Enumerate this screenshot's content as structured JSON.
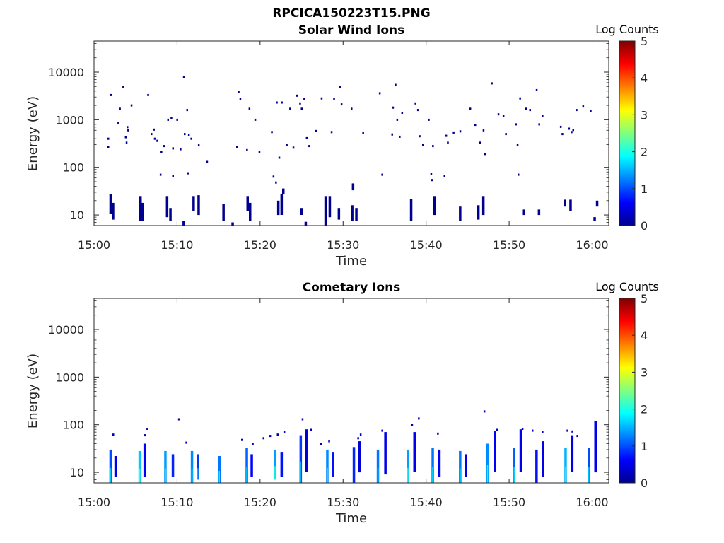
{
  "figure_title": "RPCICA150223T15.PNG",
  "colormap": [
    "#00008f",
    "#0000ff",
    "#0080ff",
    "#00ffff",
    "#80ff80",
    "#ffff00",
    "#ff8000",
    "#ff0000",
    "#800000"
  ],
  "chart_data": [
    {
      "type": "heatmap",
      "title": "Solar Wind Ions",
      "xlabel": "Time",
      "ylabel": "Energy (eV)",
      "x_tick_labels": [
        "15:00",
        "15:10",
        "15:20",
        "15:30",
        "15:40",
        "15:50",
        "16:00"
      ],
      "x_tick_minutes": [
        0,
        10,
        20,
        30,
        40,
        50,
        60
      ],
      "xlim_minutes": [
        0,
        62
      ],
      "y_scale": "log",
      "y_tick_labels": [
        "10",
        "100",
        "1000",
        "10000"
      ],
      "y_tick_values": [
        10,
        100,
        1000,
        10000
      ],
      "ylim": [
        6,
        45000
      ],
      "colorbar": {
        "label": "Log Counts",
        "range": [
          0,
          5
        ],
        "tick_labels": [
          "0",
          "1",
          "2",
          "3",
          "4",
          "5"
        ]
      },
      "points": [
        [
          1.7,
          400,
          0
        ],
        [
          1.7,
          270,
          0
        ],
        [
          2.0,
          3300,
          0
        ],
        [
          2.9,
          850,
          0
        ],
        [
          3.1,
          1700,
          0
        ],
        [
          3.5,
          4900,
          0
        ],
        [
          3.8,
          430,
          0
        ],
        [
          3.9,
          330,
          0
        ],
        [
          4.0,
          700,
          0
        ],
        [
          4.1,
          600,
          0
        ],
        [
          4.5,
          2000,
          0
        ],
        [
          6.5,
          3300,
          0
        ],
        [
          6.9,
          500,
          0
        ],
        [
          7.2,
          620,
          0
        ],
        [
          7.3,
          400,
          0
        ],
        [
          7.6,
          360,
          0
        ],
        [
          8.1,
          210,
          0
        ],
        [
          8.4,
          280,
          0
        ],
        [
          8.9,
          1000,
          0
        ],
        [
          9.3,
          1100,
          0
        ],
        [
          9.5,
          250,
          0
        ],
        [
          10.0,
          1000,
          0
        ],
        [
          10.4,
          240,
          0
        ],
        [
          10.8,
          7800,
          0
        ],
        [
          10.9,
          500,
          0
        ],
        [
          11.2,
          1600,
          0
        ],
        [
          11.4,
          480,
          0
        ],
        [
          11.7,
          400,
          0
        ],
        [
          12.6,
          290,
          0
        ],
        [
          13.6,
          130,
          0
        ],
        [
          17.2,
          270,
          0
        ],
        [
          17.4,
          3900,
          0
        ],
        [
          17.6,
          2700,
          0
        ],
        [
          18.4,
          230,
          0
        ],
        [
          18.7,
          1700,
          0
        ],
        [
          19.4,
          1000,
          0
        ],
        [
          19.9,
          210,
          0
        ],
        [
          21.4,
          550,
          0
        ],
        [
          22.0,
          2300,
          0
        ],
        [
          22.3,
          160,
          0
        ],
        [
          22.6,
          2300,
          0
        ],
        [
          23.2,
          300,
          0
        ],
        [
          23.6,
          1700,
          0
        ],
        [
          24.0,
          260,
          0
        ],
        [
          24.4,
          3200,
          0
        ],
        [
          24.8,
          2200,
          0
        ],
        [
          25.0,
          1700,
          0
        ],
        [
          25.3,
          2700,
          0
        ],
        [
          25.6,
          410,
          0
        ],
        [
          25.9,
          280,
          0
        ],
        [
          26.7,
          580,
          0
        ],
        [
          27.4,
          2800,
          0
        ],
        [
          28.6,
          550,
          0
        ],
        [
          28.9,
          2700,
          0
        ],
        [
          29.6,
          4900,
          0
        ],
        [
          29.8,
          2100,
          0
        ],
        [
          31.0,
          1700,
          0
        ],
        [
          32.4,
          530,
          0
        ],
        [
          34.4,
          3600,
          0
        ],
        [
          35.9,
          490,
          0
        ],
        [
          36.0,
          1800,
          0
        ],
        [
          36.3,
          5400,
          0
        ],
        [
          36.5,
          1000,
          0
        ],
        [
          36.8,
          440,
          0
        ],
        [
          37.1,
          1400,
          0
        ],
        [
          38.7,
          2200,
          0
        ],
        [
          39.0,
          1600,
          0
        ],
        [
          39.2,
          450,
          0
        ],
        [
          39.6,
          300,
          0
        ],
        [
          40.3,
          1000,
          0
        ],
        [
          40.8,
          280,
          0
        ],
        [
          42.4,
          460,
          0
        ],
        [
          42.6,
          330,
          0
        ],
        [
          43.3,
          540,
          0
        ],
        [
          44.1,
          570,
          0
        ],
        [
          45.3,
          1700,
          0
        ],
        [
          45.9,
          780,
          0
        ],
        [
          46.5,
          330,
          0
        ],
        [
          46.9,
          600,
          0
        ],
        [
          47.1,
          190,
          0
        ],
        [
          47.9,
          5800,
          0
        ],
        [
          48.7,
          1300,
          0
        ],
        [
          49.3,
          1200,
          0
        ],
        [
          49.6,
          500,
          0
        ],
        [
          50.8,
          800,
          0
        ],
        [
          51.0,
          300,
          0
        ],
        [
          51.3,
          2800,
          0
        ],
        [
          52.0,
          1700,
          0
        ],
        [
          52.5,
          1600,
          0
        ],
        [
          53.3,
          4200,
          0
        ],
        [
          53.6,
          800,
          0
        ],
        [
          54.0,
          1200,
          0
        ],
        [
          56.2,
          710,
          0
        ],
        [
          56.4,
          500,
          0
        ],
        [
          57.2,
          650,
          0
        ],
        [
          57.5,
          550,
          0
        ],
        [
          57.7,
          610,
          0
        ],
        [
          58.1,
          1600,
          0
        ],
        [
          58.9,
          1900,
          0
        ],
        [
          59.8,
          1500,
          0
        ],
        [
          9.5,
          65,
          0
        ],
        [
          11.3,
          75,
          0
        ],
        [
          21.6,
          64,
          0
        ],
        [
          21.9,
          48,
          0
        ],
        [
          34.7,
          70,
          0
        ],
        [
          40.6,
          73,
          0
        ],
        [
          40.7,
          54,
          0
        ],
        [
          42.2,
          65,
          0
        ],
        [
          51.1,
          70,
          0
        ],
        [
          8.0,
          70,
          0
        ]
      ],
      "bursts": [
        {
          "t": 2.0,
          "e": [
            10.5,
            27
          ],
          "v": 0
        },
        {
          "t": 2.3,
          "e": [
            8,
            18
          ],
          "v": 0
        },
        {
          "t": 5.6,
          "e": [
            7.5,
            25
          ],
          "v": 0
        },
        {
          "t": 5.9,
          "e": [
            7.5,
            18
          ],
          "v": 0
        },
        {
          "t": 8.8,
          "e": [
            9,
            25
          ],
          "v": 0
        },
        {
          "t": 9.2,
          "e": [
            7.5,
            14
          ],
          "v": 0
        },
        {
          "t": 12.0,
          "e": [
            12,
            25
          ],
          "v": 0
        },
        {
          "t": 12.6,
          "e": [
            10,
            26
          ],
          "v": 0
        },
        {
          "t": 15.6,
          "e": [
            7.5,
            17
          ],
          "v": 0
        },
        {
          "t": 18.5,
          "e": [
            12,
            25
          ],
          "v": 0
        },
        {
          "t": 18.8,
          "e": [
            7.5,
            18
          ],
          "v": 0
        },
        {
          "t": 22.2,
          "e": [
            10,
            20
          ],
          "v": 0
        },
        {
          "t": 22.6,
          "e": [
            10,
            28
          ],
          "v": 0
        },
        {
          "t": 25.0,
          "e": [
            10,
            14
          ],
          "v": 0
        },
        {
          "t": 27.9,
          "e": [
            7.5,
            25
          ],
          "v": 0
        },
        {
          "t": 28.4,
          "e": [
            9,
            25
          ],
          "v": 0
        },
        {
          "t": 29.5,
          "e": [
            8,
            14
          ],
          "v": 0
        },
        {
          "t": 31.1,
          "e": [
            7.5,
            16
          ],
          "v": 0
        },
        {
          "t": 31.6,
          "e": [
            7.5,
            14
          ],
          "v": 0
        },
        {
          "t": 38.2,
          "e": [
            7.5,
            22
          ],
          "v": 0
        },
        {
          "t": 41.0,
          "e": [
            10,
            25
          ],
          "v": 0
        },
        {
          "t": 44.1,
          "e": [
            7.5,
            15
          ],
          "v": 0
        },
        {
          "t": 46.3,
          "e": [
            8,
            16
          ],
          "v": 0
        },
        {
          "t": 46.9,
          "e": [
            10,
            25
          ],
          "v": 0
        },
        {
          "t": 51.8,
          "e": [
            10,
            13
          ],
          "v": 0
        },
        {
          "t": 53.6,
          "e": [
            10,
            13
          ],
          "v": 0
        },
        {
          "t": 56.7,
          "e": [
            15,
            21
          ],
          "v": 0
        },
        {
          "t": 57.4,
          "e": [
            12,
            21
          ],
          "v": 0
        },
        {
          "t": 60.3,
          "e": [
            7.5,
            9
          ],
          "v": 0
        },
        {
          "t": 60.6,
          "e": [
            15,
            20
          ],
          "v": 0
        },
        {
          "t": 10.8,
          "e": [
            6,
            7.4
          ],
          "v": 0
        },
        {
          "t": 16.7,
          "e": [
            6,
            7
          ],
          "v": 0
        },
        {
          "t": 25.5,
          "e": [
            6,
            7.2
          ],
          "v": 0
        },
        {
          "t": 27.9,
          "e": [
            6,
            7.5
          ],
          "v": 0
        },
        {
          "t": 31.2,
          "e": [
            33,
            46
          ],
          "v": 0
        },
        {
          "t": 22.8,
          "e": [
            28,
            36
          ],
          "v": 0
        }
      ]
    },
    {
      "type": "heatmap",
      "title": "Cometary Ions",
      "xlabel": "Time",
      "ylabel": "Energy (eV)",
      "x_tick_labels": [
        "15:00",
        "15:10",
        "15:20",
        "15:30",
        "15:40",
        "15:50",
        "16:00"
      ],
      "x_tick_minutes": [
        0,
        10,
        20,
        30,
        40,
        50,
        60
      ],
      "xlim_minutes": [
        0,
        62
      ],
      "y_scale": "log",
      "y_tick_labels": [
        "10",
        "100",
        "1000",
        "10000"
      ],
      "y_tick_values": [
        10,
        100,
        1000,
        10000
      ],
      "ylim": [
        6,
        45000
      ],
      "colorbar": {
        "label": "Log Counts",
        "range": [
          0,
          5
        ],
        "tick_labels": [
          "0",
          "1",
          "2",
          "3",
          "4",
          "5"
        ]
      },
      "points": [
        [
          2.3,
          62,
          0.2
        ],
        [
          6.4,
          82,
          0.3
        ],
        [
          6.1,
          60,
          0.2
        ],
        [
          10.2,
          130,
          0.2
        ],
        [
          11.1,
          42,
          0.3
        ],
        [
          17.8,
          48,
          0.3
        ],
        [
          19.1,
          40,
          0.2
        ],
        [
          20.4,
          52,
          0.2
        ],
        [
          21.2,
          58,
          0.2
        ],
        [
          22.1,
          62,
          0.2
        ],
        [
          22.9,
          70,
          0.3
        ],
        [
          25.1,
          130,
          0.3
        ],
        [
          26.1,
          78,
          0.3
        ],
        [
          27.3,
          40,
          0.2
        ],
        [
          28.3,
          45,
          0.3
        ],
        [
          31.8,
          52,
          0.2
        ],
        [
          32.1,
          62,
          0.3
        ],
        [
          34.7,
          75,
          0.3
        ],
        [
          38.3,
          98,
          0.2
        ],
        [
          39.1,
          135,
          0.2
        ],
        [
          41.4,
          65,
          0.3
        ],
        [
          47.0,
          190,
          0.3
        ],
        [
          48.5,
          78,
          0.3
        ],
        [
          51.6,
          82,
          0.3
        ],
        [
          52.8,
          75,
          0.3
        ],
        [
          54.0,
          70,
          0.3
        ],
        [
          57.0,
          75,
          0.3
        ],
        [
          57.6,
          72,
          0.3
        ],
        [
          58.2,
          58,
          0.2
        ]
      ],
      "bursts": [
        {
          "t": 2.0,
          "e": [
            6,
            30
          ],
          "v": 1.0
        },
        {
          "t": 2.6,
          "e": [
            8,
            22
          ],
          "v": 0.5
        },
        {
          "t": 5.5,
          "e": [
            6,
            28
          ],
          "v": 1.6
        },
        {
          "t": 6.1,
          "e": [
            8,
            40
          ],
          "v": 0.6
        },
        {
          "t": 8.6,
          "e": [
            6,
            28
          ],
          "v": 1.4
        },
        {
          "t": 9.5,
          "e": [
            8,
            24
          ],
          "v": 0.8
        },
        {
          "t": 11.8,
          "e": [
            6,
            28
          ],
          "v": 1.3
        },
        {
          "t": 12.5,
          "e": [
            7,
            24
          ],
          "v": 0.9
        },
        {
          "t": 15.1,
          "e": [
            6,
            22
          ],
          "v": 1.2
        },
        {
          "t": 18.4,
          "e": [
            6,
            32
          ],
          "v": 1.1
        },
        {
          "t": 19.0,
          "e": [
            8,
            24
          ],
          "v": 0.6
        },
        {
          "t": 21.8,
          "e": [
            7,
            30
          ],
          "v": 1.4
        },
        {
          "t": 22.6,
          "e": [
            8,
            26
          ],
          "v": 0.7
        },
        {
          "t": 24.9,
          "e": [
            6,
            60
          ],
          "v": 0.9
        },
        {
          "t": 25.6,
          "e": [
            10,
            80
          ],
          "v": 0.4
        },
        {
          "t": 28.1,
          "e": [
            6,
            30
          ],
          "v": 1.3
        },
        {
          "t": 28.8,
          "e": [
            8,
            26
          ],
          "v": 0.7
        },
        {
          "t": 31.3,
          "e": [
            6,
            34
          ],
          "v": 0.8
        },
        {
          "t": 32.0,
          "e": [
            10,
            45
          ],
          "v": 0.4
        },
        {
          "t": 34.2,
          "e": [
            6,
            30
          ],
          "v": 1.2
        },
        {
          "t": 35.1,
          "e": [
            9,
            70
          ],
          "v": 0.5
        },
        {
          "t": 37.8,
          "e": [
            6,
            30
          ],
          "v": 1.4
        },
        {
          "t": 38.6,
          "e": [
            10,
            70
          ],
          "v": 0.5
        },
        {
          "t": 40.8,
          "e": [
            6,
            32
          ],
          "v": 1.2
        },
        {
          "t": 41.6,
          "e": [
            8,
            30
          ],
          "v": 0.6
        },
        {
          "t": 44.1,
          "e": [
            6,
            28
          ],
          "v": 1.2
        },
        {
          "t": 44.8,
          "e": [
            8,
            24
          ],
          "v": 0.5
        },
        {
          "t": 47.4,
          "e": [
            6,
            40
          ],
          "v": 1.3
        },
        {
          "t": 48.3,
          "e": [
            10,
            75
          ],
          "v": 0.6
        },
        {
          "t": 50.6,
          "e": [
            6,
            32
          ],
          "v": 1.1
        },
        {
          "t": 51.4,
          "e": [
            10,
            80
          ],
          "v": 0.5
        },
        {
          "t": 53.3,
          "e": [
            6,
            30
          ],
          "v": 0.7
        },
        {
          "t": 54.1,
          "e": [
            8,
            45
          ],
          "v": 0.5
        },
        {
          "t": 56.8,
          "e": [
            6,
            32
          ],
          "v": 1.5
        },
        {
          "t": 57.6,
          "e": [
            10,
            60
          ],
          "v": 0.5
        },
        {
          "t": 59.6,
          "e": [
            6,
            32
          ],
          "v": 1.0
        },
        {
          "t": 60.4,
          "e": [
            10,
            120
          ],
          "v": 0.5
        }
      ]
    }
  ]
}
